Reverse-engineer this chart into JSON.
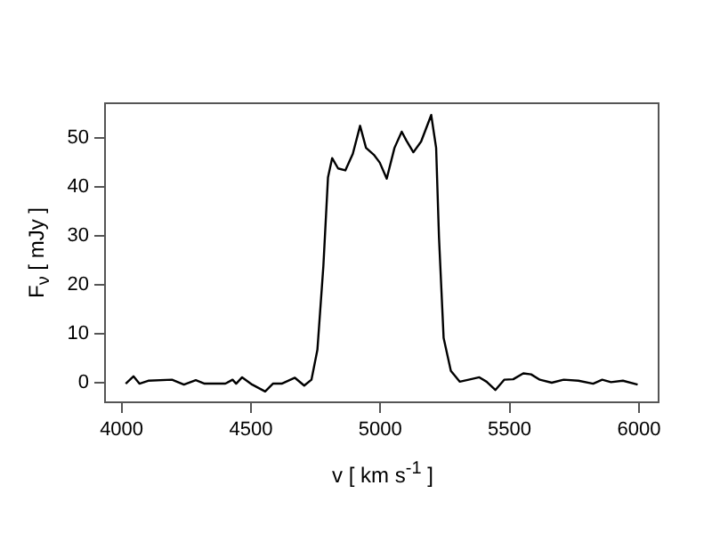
{
  "chart_data": {
    "type": "line",
    "xlabel": "v [ km s$^{-1}$ ]",
    "ylabel": "F$_{ν}$ [ mJy ]",
    "x": [
      4016,
      4046,
      4069,
      4103,
      4195,
      4241,
      4287,
      4321,
      4401,
      4429,
      4443,
      4466,
      4505,
      4555,
      4585,
      4619,
      4670,
      4706,
      4734,
      4757,
      4780,
      4798,
      4814,
      4837,
      4865,
      4894,
      4922,
      4945,
      4975,
      4998,
      5025,
      5055,
      5083,
      5101,
      5128,
      5158,
      5197,
      5216,
      5227,
      5245,
      5273,
      5307,
      5342,
      5383,
      5411,
      5445,
      5479,
      5514,
      5553,
      5583,
      5617,
      5663,
      5709,
      5766,
      5823,
      5858,
      5892,
      5938,
      5995
    ],
    "series": [
      {
        "color": "#000000",
        "values": [
          -0.2,
          1.3,
          -0.2,
          0.4,
          0.6,
          -0.4,
          0.5,
          -0.2,
          -0.2,
          0.6,
          -0.2,
          1.1,
          -0.4,
          -1.8,
          -0.2,
          -0.2,
          1.0,
          -0.6,
          0.6,
          6.7,
          23.7,
          41.9,
          45.8,
          43.7,
          43.3,
          46.7,
          52.4,
          47.9,
          46.5,
          44.9,
          41.6,
          47.9,
          51.2,
          49.4,
          47.0,
          49.2,
          54.6,
          47.9,
          29.7,
          9.1,
          2.4,
          0.2,
          0.6,
          1.1,
          0.2,
          -1.5,
          0.6,
          0.7,
          1.9,
          1.7,
          0.6,
          0.0,
          0.6,
          0.4,
          -0.2,
          0.6,
          0.1,
          0.4,
          -0.4
        ]
      }
    ],
    "xlim": [
      3936,
      6076
    ],
    "ylim": [
      -4,
      57
    ],
    "xticks": [
      4000,
      4500,
      5000,
      5500,
      6000
    ],
    "yticks": [
      0,
      10,
      20,
      30,
      40,
      50
    ],
    "grid": false,
    "legend": false,
    "marker": "none",
    "line_style": "solid"
  }
}
